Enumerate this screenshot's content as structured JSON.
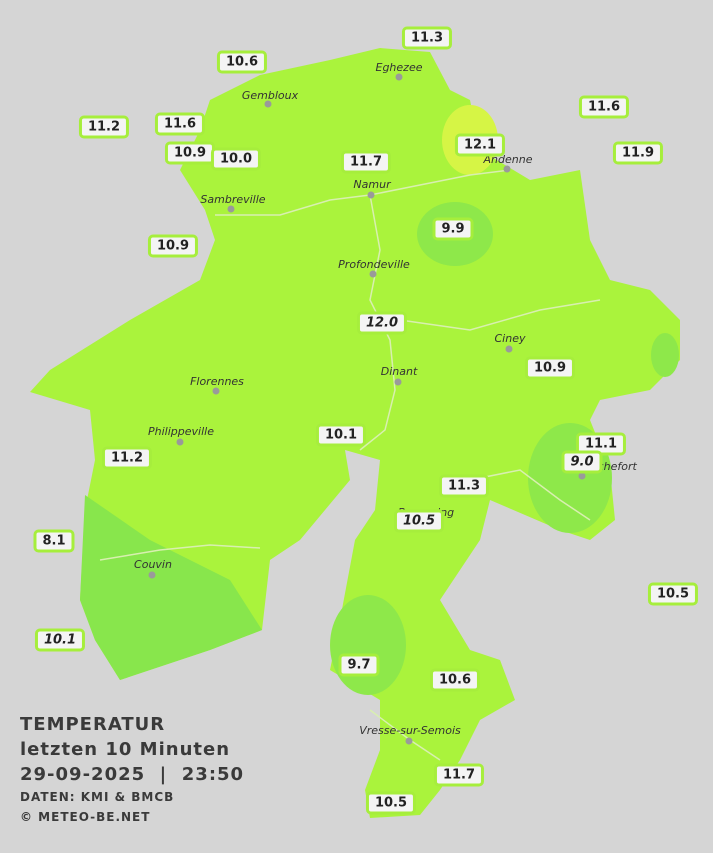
{
  "title": {
    "heading": "TEMPERATUR",
    "subheading": "letzten 10 Minuten",
    "timestamp": "29-09-2025  |  23:50",
    "source": "DATEN: KMI & BMCB",
    "copyright": "© METEO-BE.NET"
  },
  "cities": [
    "Eghezee",
    "Gembloux",
    "Andenne",
    "Namur",
    "Sambreville",
    "Profondeville",
    "Ciney",
    "Dinant",
    "Florennes",
    "Philippeville",
    "Rochefort",
    "Beauraing",
    "Couvin",
    "Vresse-sur-Semois"
  ],
  "stations": [
    "10.6",
    "11.3",
    "11.2",
    "11.6",
    "11.6",
    "10.9",
    "10.0",
    "11.7",
    "12.1",
    "11.9",
    "10.9",
    "9.9",
    "10.9",
    "10.1",
    "11.1",
    "11.2",
    "11.3",
    "8.1",
    "10.5",
    "9.7",
    "10.6",
    "11.7",
    "10.5"
  ],
  "stations_italic": [
    "12.0",
    "9.0",
    "10.5",
    "10.1"
  ]
}
